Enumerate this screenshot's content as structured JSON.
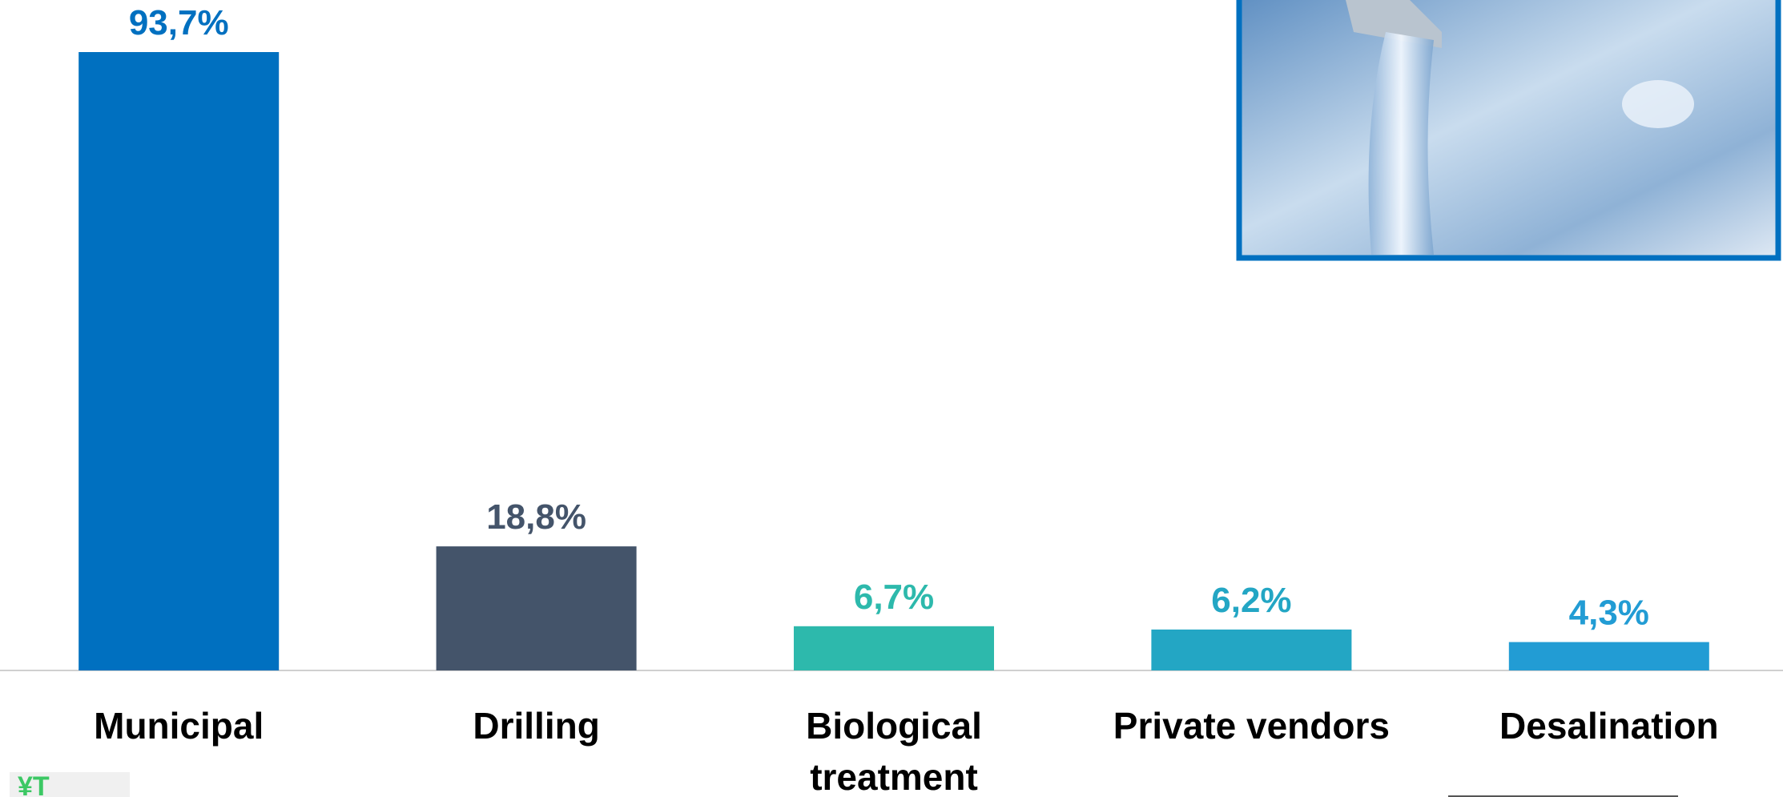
{
  "chart_data": {
    "type": "bar",
    "categories": [
      "Municipal",
      "Drilling",
      "Biological treatment",
      "Private vendors",
      "Desalination"
    ],
    "values": [
      93.7,
      18.8,
      6.7,
      6.2,
      4.3
    ],
    "value_labels": [
      "93,7%",
      "18,8%",
      "6,7%",
      "6,2%",
      "4,3%"
    ],
    "colors": [
      "#0070c0",
      "#44546a",
      "#2db9ac",
      "#23a6c4",
      "#229cd4"
    ]
  }
}
